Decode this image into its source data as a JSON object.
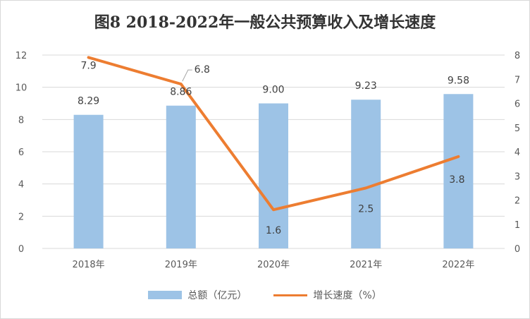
{
  "chart_data": {
    "type": "bar",
    "title": "图8 2018-2022年一般公共预算收入及增长速度",
    "categories": [
      "2018年",
      "2019年",
      "2020年",
      "2021年",
      "2022年"
    ],
    "series": [
      {
        "name": "总额（亿元）",
        "type": "bar",
        "axis": "left",
        "values": [
          8.29,
          8.86,
          9.0,
          9.23,
          9.58
        ],
        "labels": [
          "8.29",
          "8.86",
          "9.00",
          "9.23",
          "9.58"
        ],
        "color": "#9dc3e6"
      },
      {
        "name": "增长速度（%）",
        "type": "line",
        "axis": "right",
        "values": [
          7.9,
          6.8,
          1.6,
          2.5,
          3.8
        ],
        "labels": [
          "7.9",
          "6.8",
          "1.6",
          "2.5",
          "3.8"
        ],
        "color": "#ed7d31"
      }
    ],
    "ylim_left": [
      0,
      12
    ],
    "yticks_left": [
      "0",
      "2",
      "4",
      "6",
      "8",
      "10",
      "12"
    ],
    "ylim_right": [
      0,
      8
    ],
    "yticks_right": [
      "0",
      "1",
      "2",
      "3",
      "4",
      "5",
      "6",
      "7",
      "8"
    ],
    "grid": true,
    "legend": "bottom",
    "gridline_color": "#d9d9d9"
  }
}
